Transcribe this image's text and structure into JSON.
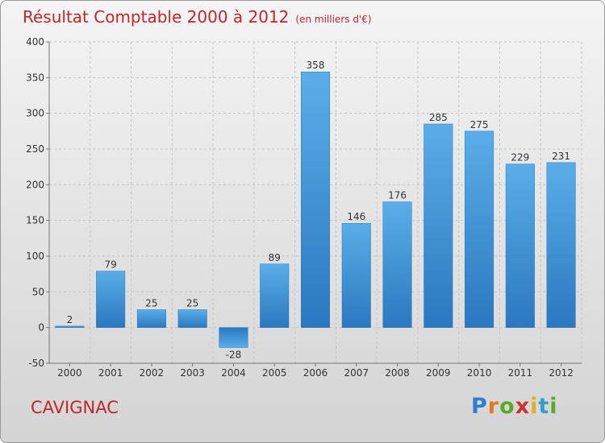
{
  "page": {
    "title": "Résultat Comptable 2000 à 2012",
    "unit": "(en milliers d'€)",
    "town": "CAVIGNAC",
    "brand": "Proxiti",
    "brand_colors": [
      "#2f7fd0",
      "#e07a1f",
      "#5aaa2a",
      "#d23030",
      "#e0b020",
      "#2f9fd0",
      "#5aaa2a"
    ]
  },
  "chart_data": {
    "type": "bar",
    "title": "Résultat Comptable 2000 à 2012",
    "subtitle": "(en milliers d'€)",
    "xlabel": "",
    "ylabel": "",
    "categories": [
      "2000",
      "2001",
      "2002",
      "2003",
      "2004",
      "2005",
      "2006",
      "2007",
      "2008",
      "2009",
      "2010",
      "2011",
      "2012"
    ],
    "values": [
      2,
      79,
      25,
      25,
      -28,
      89,
      358,
      146,
      176,
      285,
      275,
      229,
      231
    ],
    "ylim": [
      -50,
      400
    ],
    "yticks": [
      -50,
      0,
      50,
      100,
      150,
      200,
      250,
      300,
      350,
      400
    ],
    "grid": true,
    "bar_color": "#3f96db"
  }
}
